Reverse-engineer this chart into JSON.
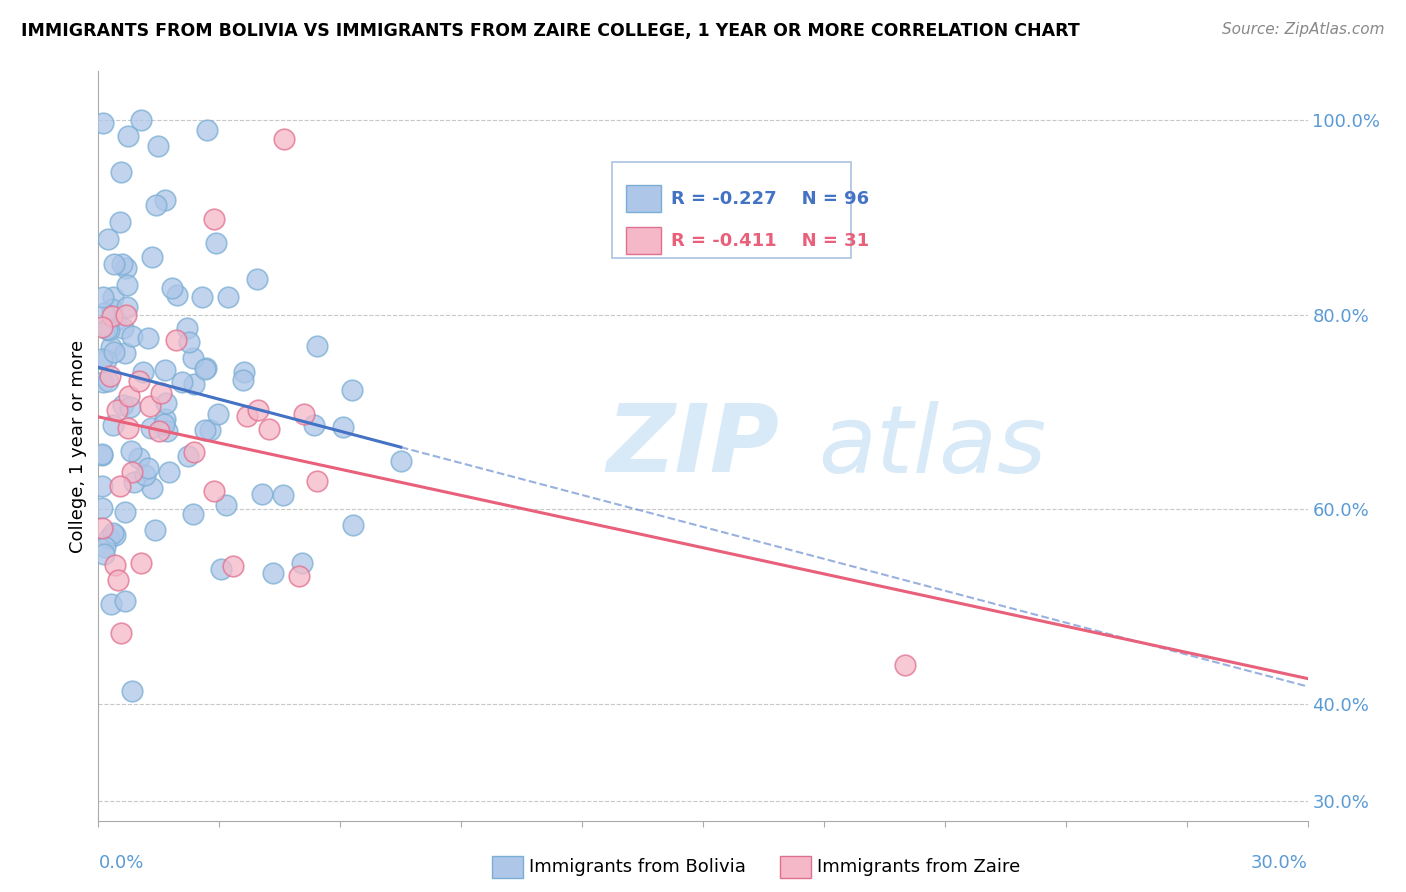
{
  "title": "IMMIGRANTS FROM BOLIVIA VS IMMIGRANTS FROM ZAIRE COLLEGE, 1 YEAR OR MORE CORRELATION CHART",
  "source": "Source: ZipAtlas.com",
  "ylabel": "College, 1 year or more",
  "right_yticks": [
    "100.0%",
    "80.0%",
    "60.0%",
    "40.0%",
    "30.0%"
  ],
  "right_ytick_vals": [
    1.0,
    0.8,
    0.6,
    0.4,
    0.3
  ],
  "xmin": 0.0,
  "xmax": 0.3,
  "ymin": 0.28,
  "ymax": 1.05,
  "bolivia_R": -0.227,
  "bolivia_N": 96,
  "zaire_R": -0.411,
  "zaire_N": 31,
  "bolivia_color": "#aec6e8",
  "zaire_color": "#f4b8c8",
  "bolivia_line_color": "#4472c4",
  "zaire_line_color": "#e8607a",
  "bolivia_edge_color": "#7aaed4",
  "zaire_edge_color": "#e07090",
  "watermark_zip": "ZIP",
  "watermark_atlas": "atlas",
  "watermark_color": "#d8eaf8"
}
